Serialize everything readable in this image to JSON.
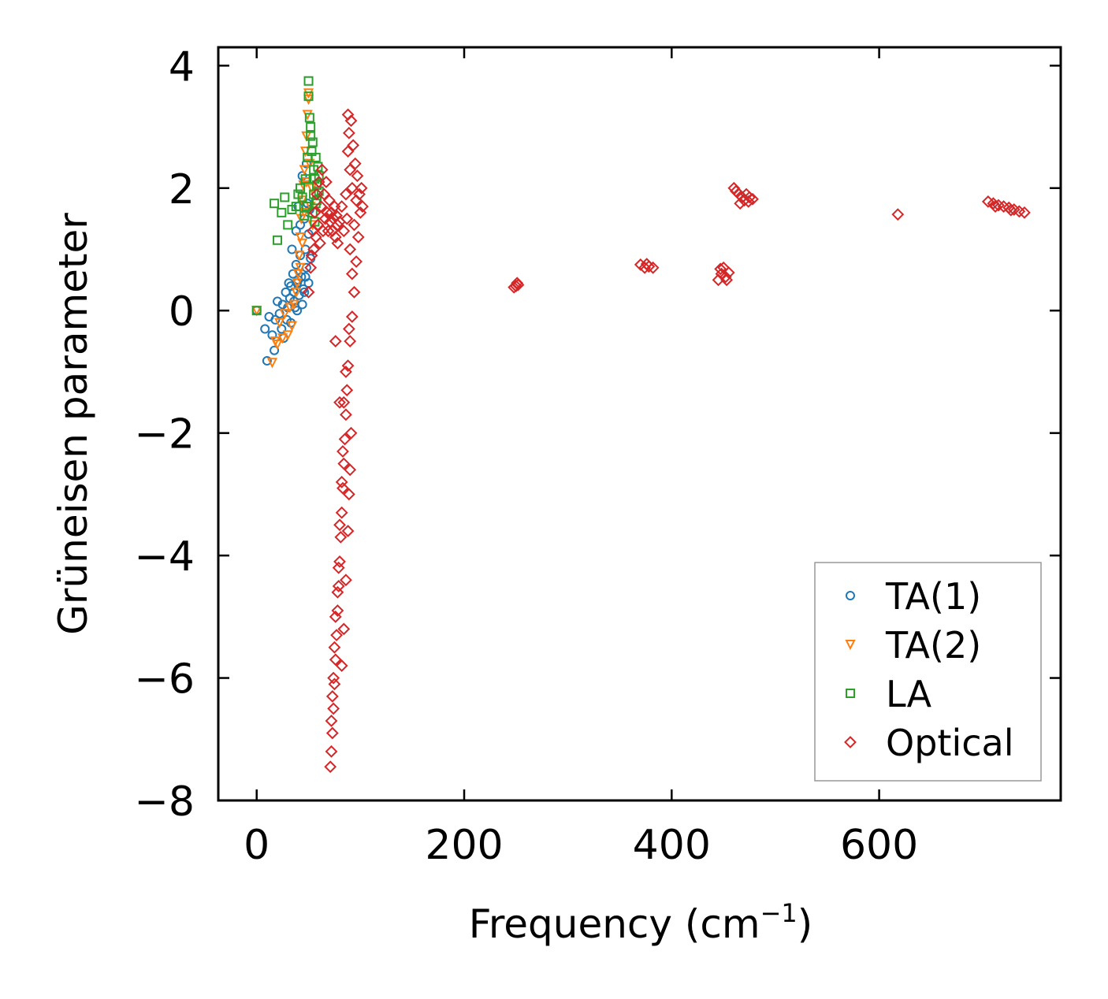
{
  "chart_data": {
    "type": "scatter",
    "title": "",
    "xlabel": "Frequency (cm",
    "xlabel_sup": "−1",
    "xlabel_close": ")",
    "ylabel": "Grüneisen parameter",
    "xlim": [
      -37,
      775
    ],
    "ylim": [
      -8,
      4.3
    ],
    "xticks": [
      0,
      200,
      400,
      600
    ],
    "xtick_labels": [
      "0",
      "200",
      "400",
      "600"
    ],
    "yticks": [
      -8,
      -6,
      -4,
      -2,
      0,
      2,
      4
    ],
    "ytick_labels": [
      "−8",
      "−6",
      "−4",
      "−2",
      "0",
      "2",
      "4"
    ],
    "legend_position": "bottom-right",
    "series": [
      {
        "name": "TA(1)",
        "marker": "circle",
        "color": "#1f77b4",
        "points": [
          [
            0,
            0
          ],
          [
            8,
            -0.3
          ],
          [
            10,
            -0.82
          ],
          [
            12,
            -0.1
          ],
          [
            15,
            -0.4
          ],
          [
            17,
            -0.65
          ],
          [
            18,
            -0.15
          ],
          [
            20,
            0.15
          ],
          [
            22,
            -0.05
          ],
          [
            24,
            -0.3
          ],
          [
            25,
            0.1
          ],
          [
            26,
            -0.45
          ],
          [
            28,
            0.3
          ],
          [
            29,
            -0.15
          ],
          [
            30,
            0.05
          ],
          [
            31,
            0.45
          ],
          [
            32,
            0.2
          ],
          [
            33,
            -0.2
          ],
          [
            34,
            1.0
          ],
          [
            35,
            0.6
          ],
          [
            36,
            0.3
          ],
          [
            37,
            0.05
          ],
          [
            38,
            0.75
          ],
          [
            38,
            1.3
          ],
          [
            39,
            0.45
          ],
          [
            40,
            1.7
          ],
          [
            41,
            0.25
          ],
          [
            42,
            0.9
          ],
          [
            43,
            0.55
          ],
          [
            44,
            2.2
          ],
          [
            45,
            0.35
          ],
          [
            46,
            1.5
          ],
          [
            47,
            1.0
          ],
          [
            48,
            2.4
          ],
          [
            48,
            0.7
          ],
          [
            49,
            1.75
          ],
          [
            50,
            0.45
          ],
          [
            50,
            1.25
          ],
          [
            51,
            1.65
          ],
          [
            52,
            0.85
          ],
          [
            36,
            0.15
          ],
          [
            40,
            0.5
          ],
          [
            44,
            0.1
          ],
          [
            46,
            0.3
          ],
          [
            33,
            0.4
          ],
          [
            39,
            0.0
          ],
          [
            42,
            1.4
          ],
          [
            47,
            0.55
          ]
        ]
      },
      {
        "name": "TA(2)",
        "marker": "triangle-down",
        "color": "#ff7f0e",
        "points": [
          [
            0,
            0
          ],
          [
            15,
            -0.85
          ],
          [
            18,
            -0.5
          ],
          [
            20,
            -0.55
          ],
          [
            22,
            -0.2
          ],
          [
            25,
            -0.45
          ],
          [
            27,
            -0.05
          ],
          [
            30,
            -0.4
          ],
          [
            32,
            0.05
          ],
          [
            34,
            -0.25
          ],
          [
            36,
            0.1
          ],
          [
            38,
            0.3
          ],
          [
            40,
            0.6
          ],
          [
            41,
            0.9
          ],
          [
            42,
            1.2
          ],
          [
            43,
            1.5
          ],
          [
            44,
            1.8
          ],
          [
            45,
            2.05
          ],
          [
            46,
            2.3
          ],
          [
            47,
            2.6
          ],
          [
            48,
            2.85
          ],
          [
            49,
            3.2
          ],
          [
            50,
            3.45
          ],
          [
            50,
            3.55
          ],
          [
            48,
            2.1
          ],
          [
            46,
            1.6
          ],
          [
            44,
            1.1
          ],
          [
            42,
            0.7
          ],
          [
            39,
            0.45
          ],
          [
            51,
            2.4
          ],
          [
            52,
            1.7
          ],
          [
            53,
            2.0
          ],
          [
            54,
            1.4
          ]
        ]
      },
      {
        "name": "LA",
        "marker": "square",
        "color": "#2ca02c",
        "points": [
          [
            0,
            0
          ],
          [
            17,
            1.75
          ],
          [
            20,
            1.15
          ],
          [
            24,
            1.6
          ],
          [
            27,
            1.85
          ],
          [
            30,
            1.4
          ],
          [
            34,
            1.65
          ],
          [
            38,
            1.7
          ],
          [
            40,
            1.9
          ],
          [
            42,
            2.0
          ],
          [
            44,
            1.85
          ],
          [
            46,
            1.55
          ],
          [
            47,
            2.15
          ],
          [
            48,
            1.7
          ],
          [
            49,
            2.5
          ],
          [
            50,
            3.75
          ],
          [
            50,
            3.5
          ],
          [
            51,
            3.15
          ],
          [
            52,
            3.0
          ],
          [
            52,
            2.85
          ],
          [
            53,
            2.6
          ],
          [
            54,
            2.75
          ],
          [
            55,
            2.3
          ],
          [
            55,
            1.9
          ],
          [
            56,
            2.15
          ],
          [
            57,
            2.5
          ],
          [
            57,
            1.75
          ],
          [
            58,
            2.05
          ],
          [
            59,
            2.35
          ],
          [
            60,
            1.95
          ],
          [
            54,
            1.6
          ],
          [
            56,
            1.45
          ],
          [
            58,
            1.8
          ],
          [
            60,
            2.2
          ]
        ]
      },
      {
        "name": "Optical",
        "marker": "diamond",
        "color": "#d62728",
        "points": [
          [
            50,
            0.3
          ],
          [
            52,
            0.7
          ],
          [
            53,
            0.9
          ],
          [
            54,
            1.3
          ],
          [
            55,
            1.0
          ],
          [
            56,
            1.6
          ],
          [
            57,
            1.2
          ],
          [
            58,
            1.9
          ],
          [
            59,
            1.4
          ],
          [
            60,
            2.1
          ],
          [
            61,
            1.1
          ],
          [
            62,
            1.7
          ],
          [
            63,
            2.3
          ],
          [
            64,
            1.3
          ],
          [
            65,
            1.9
          ],
          [
            66,
            1.5
          ],
          [
            67,
            2.1
          ],
          [
            68,
            1.6
          ],
          [
            69,
            1.3
          ],
          [
            70,
            1.8
          ],
          [
            71,
            1.45
          ],
          [
            72,
            1.6
          ],
          [
            73,
            1.3
          ],
          [
            74,
            1.5
          ],
          [
            75,
            1.7
          ],
          [
            76,
            1.2
          ],
          [
            77,
            1.55
          ],
          [
            78,
            1.4
          ],
          [
            80,
            1.45
          ],
          [
            82,
            1.7
          ],
          [
            84,
            1.3
          ],
          [
            86,
            1.9
          ],
          [
            87,
            1.5
          ],
          [
            88,
            2.6
          ],
          [
            88,
            3.2
          ],
          [
            89,
            2.9
          ],
          [
            90,
            1.0
          ],
          [
            90,
            2.3
          ],
          [
            91,
            3.1
          ],
          [
            92,
            0.6
          ],
          [
            92,
            2.0
          ],
          [
            93,
            2.7
          ],
          [
            94,
            1.4
          ],
          [
            95,
            2.4
          ],
          [
            96,
            0.8
          ],
          [
            96,
            1.8
          ],
          [
            97,
            2.2
          ],
          [
            98,
            1.2
          ],
          [
            99,
            1.9
          ],
          [
            100,
            1.6
          ],
          [
            101,
            2.0
          ],
          [
            102,
            1.7
          ],
          [
            94,
            0.3
          ],
          [
            92,
            -0.1
          ],
          [
            90,
            -0.5
          ],
          [
            88,
            -0.9
          ],
          [
            87,
            -1.3
          ],
          [
            86,
            -1.7
          ],
          [
            85,
            -2.1
          ],
          [
            84,
            -2.5
          ],
          [
            83,
            -2.9
          ],
          [
            82,
            -3.3
          ],
          [
            81,
            -3.7
          ],
          [
            80,
            -4.1
          ],
          [
            79,
            -4.5
          ],
          [
            78,
            -4.9
          ],
          [
            77,
            -5.3
          ],
          [
            76,
            -5.7
          ],
          [
            75,
            -6.1
          ],
          [
            74,
            -6.5
          ],
          [
            73,
            -6.9
          ],
          [
            72,
            -7.2
          ],
          [
            71,
            -7.45
          ],
          [
            89,
            -0.3
          ],
          [
            86,
            -1.0
          ],
          [
            84,
            -1.5
          ],
          [
            83,
            -2.3
          ],
          [
            82,
            -2.8
          ],
          [
            80,
            -3.5
          ],
          [
            79,
            -4.2
          ],
          [
            78,
            -4.6
          ],
          [
            76,
            -5.0
          ],
          [
            75,
            -5.5
          ],
          [
            74,
            -6.0
          ],
          [
            73,
            -6.3
          ],
          [
            72,
            -6.7
          ],
          [
            80,
            -1.5
          ],
          [
            76,
            -0.5
          ],
          [
            78,
            1.1
          ],
          [
            91,
            -2.0
          ],
          [
            90,
            -2.6
          ],
          [
            89,
            -3.0
          ],
          [
            88,
            -3.6
          ],
          [
            86,
            -4.4
          ],
          [
            84,
            -5.2
          ],
          [
            82,
            -5.8
          ],
          [
            250,
            0.4
          ],
          [
            252,
            0.42
          ],
          [
            248,
            0.38
          ],
          [
            251,
            0.45
          ],
          [
            370,
            0.75
          ],
          [
            374,
            0.7
          ],
          [
            378,
            0.72
          ],
          [
            382,
            0.7
          ],
          [
            376,
            0.76
          ],
          [
            445,
            0.5
          ],
          [
            448,
            0.6
          ],
          [
            450,
            0.7
          ],
          [
            452,
            0.55
          ],
          [
            455,
            0.62
          ],
          [
            447,
            0.68
          ],
          [
            453,
            0.5
          ],
          [
            460,
            2.0
          ],
          [
            462,
            1.95
          ],
          [
            465,
            1.9
          ],
          [
            468,
            1.85
          ],
          [
            470,
            1.8
          ],
          [
            472,
            1.9
          ],
          [
            475,
            1.85
          ],
          [
            478,
            1.82
          ],
          [
            466,
            1.75
          ],
          [
            474,
            1.78
          ],
          [
            618,
            1.57
          ],
          [
            705,
            1.78
          ],
          [
            710,
            1.75
          ],
          [
            715,
            1.72
          ],
          [
            720,
            1.7
          ],
          [
            725,
            1.68
          ],
          [
            730,
            1.65
          ],
          [
            735,
            1.62
          ],
          [
            740,
            1.6
          ],
          [
            712,
            1.7
          ],
          [
            727,
            1.64
          ]
        ]
      }
    ]
  }
}
